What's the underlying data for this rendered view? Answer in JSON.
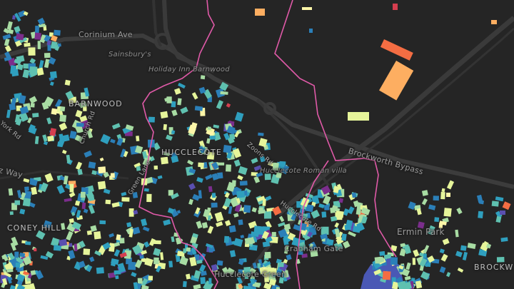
{
  "map": {
    "style": "dark",
    "colors": {
      "background": "#252525",
      "road_major": "#3a3a3a",
      "road_minor": "#303030",
      "boundary": "#e05aa8",
      "water": "#4a58b5"
    },
    "labels": {
      "corinium_ave": "Corinium Ave",
      "sainsburys": "Sainsbury's",
      "holiday_inn": "Holiday Inn Barnwood",
      "barnwood": "BARNWOOD",
      "hucclecote": "HUCCLECOTE",
      "brockworth_bypass": "Brockworth Bypass",
      "roman_villa": "Hucclecote Roman villa",
      "ermin_park": "Ermin Park",
      "coney_hill": "CONEY HILL",
      "way": "z Way",
      "hucclecote_green": "Hucclecote Green",
      "cranham_gate": "Cranham Gate",
      "brockworth": "BROCKW",
      "york_rd": "York Rd",
      "church_rd": "Church Rd",
      "green_lane": "Green Lane",
      "zoons_rd": "Zoons Rd",
      "hucclecote_rd": "Hucclecote Rd"
    },
    "building_palette": [
      "#fdf6a8",
      "#e6f59a",
      "#a8dca3",
      "#5fc1b0",
      "#2f9fbe",
      "#2b7fb8",
      "#5a4fb0",
      "#7b2e8c",
      "#f46d43",
      "#fdae61",
      "#d53e4f"
    ]
  }
}
